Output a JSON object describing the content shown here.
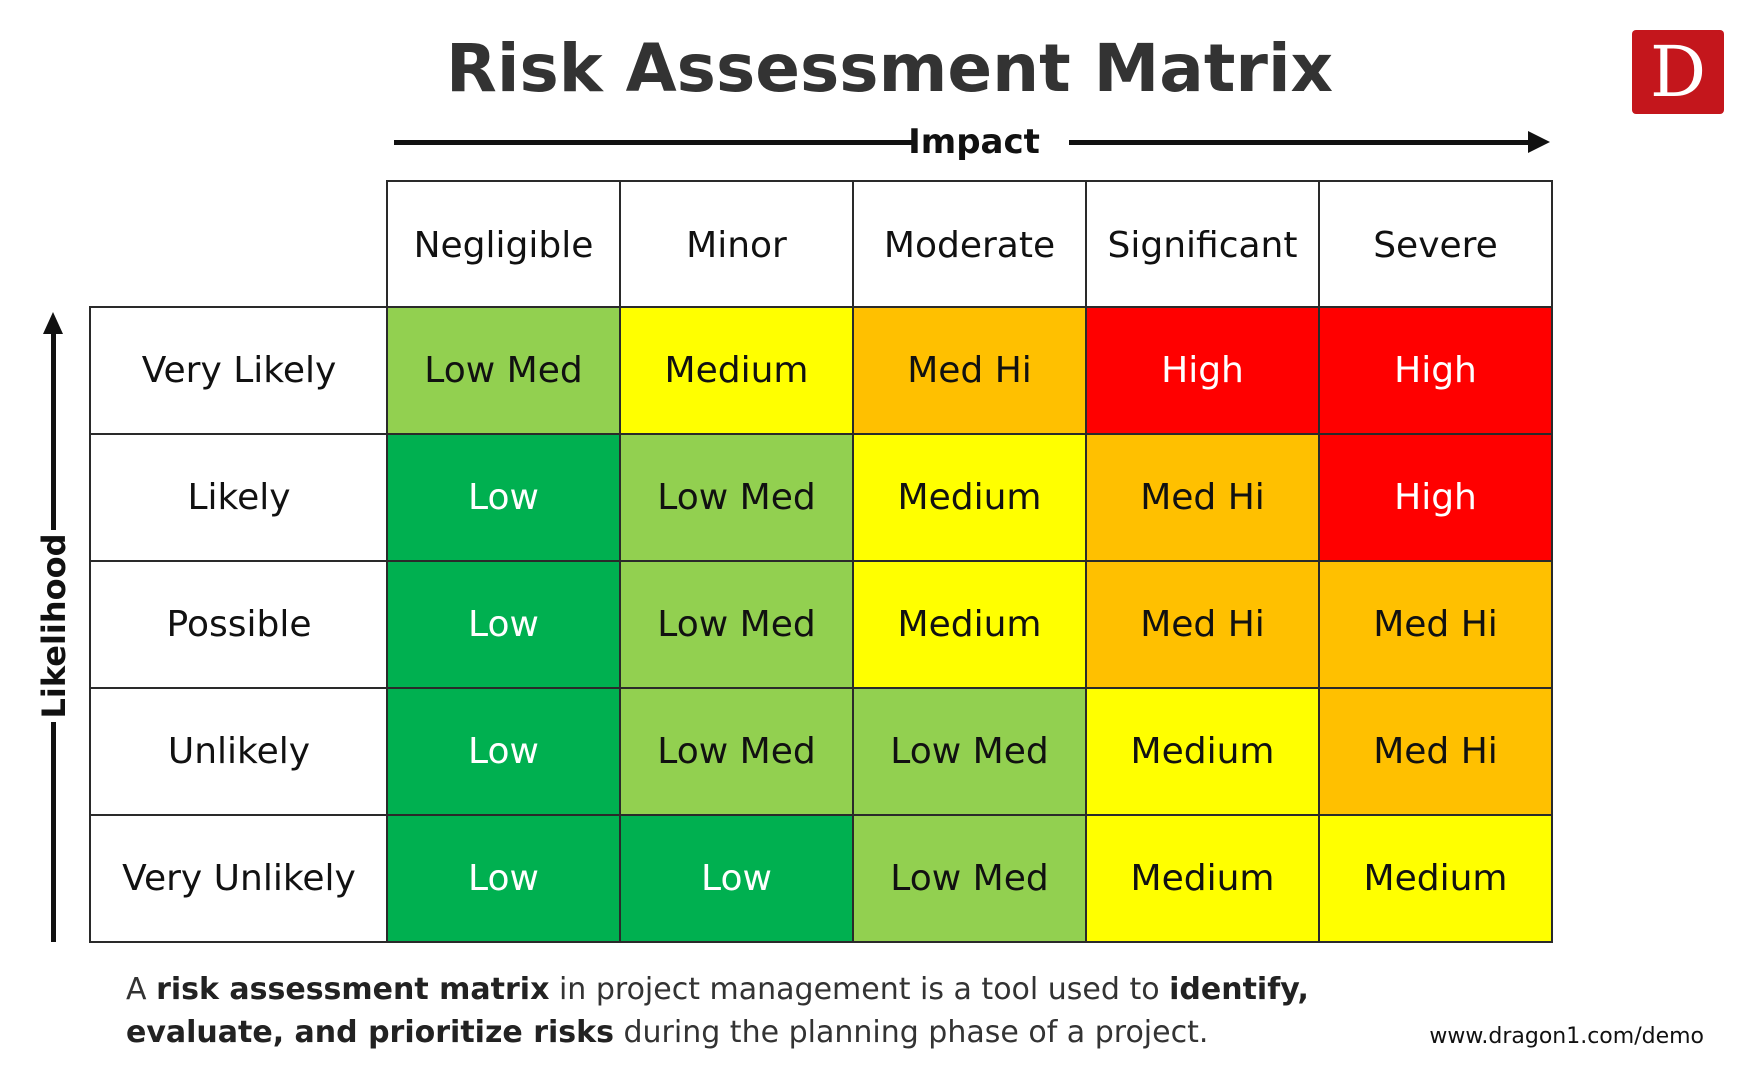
{
  "title": "Risk Assessment Matrix",
  "logo": {
    "letter": "D",
    "color": "#c4161c"
  },
  "axes": {
    "impact": "Impact",
    "likelihood": "Likelihood"
  },
  "impact_levels": [
    "Negligible",
    "Minor",
    "Moderate",
    "Significant",
    "Severe"
  ],
  "likelihood_levels": [
    "Very Likely",
    "Likely",
    "Possible",
    "Unlikely",
    "Very Unlikely"
  ],
  "matrix": [
    [
      "Low Med",
      "Medium",
      "Med Hi",
      "High",
      "High"
    ],
    [
      "Low",
      "Low Med",
      "Medium",
      "Med Hi",
      "High"
    ],
    [
      "Low",
      "Low Med",
      "Medium",
      "Med Hi",
      "Med Hi"
    ],
    [
      "Low",
      "Low Med",
      "Low Med",
      "Medium",
      "Med Hi"
    ],
    [
      "Low",
      "Low",
      "Low Med",
      "Medium",
      "Medium"
    ]
  ],
  "rating_colors": {
    "Low": {
      "bg": "#00b050",
      "fg": "#ffffff"
    },
    "Low Med": {
      "bg": "#92d050",
      "fg": "#111111"
    },
    "Medium": {
      "bg": "#ffff00",
      "fg": "#111111"
    },
    "Med Hi": {
      "bg": "#ffc000",
      "fg": "#111111"
    },
    "High": {
      "bg": "#ff0000",
      "fg": "#ffffff"
    }
  },
  "description": {
    "segments": [
      {
        "text": "A ",
        "bold": false
      },
      {
        "text": "risk assessment matrix",
        "bold": true
      },
      {
        "text": " in project management is a tool used to ",
        "bold": false
      },
      {
        "text": "identify, evaluate, and prioritize risks",
        "bold": true
      },
      {
        "text": " during the planning phase of a project.",
        "bold": false
      }
    ]
  },
  "url": "www.dragon1.com/demo"
}
